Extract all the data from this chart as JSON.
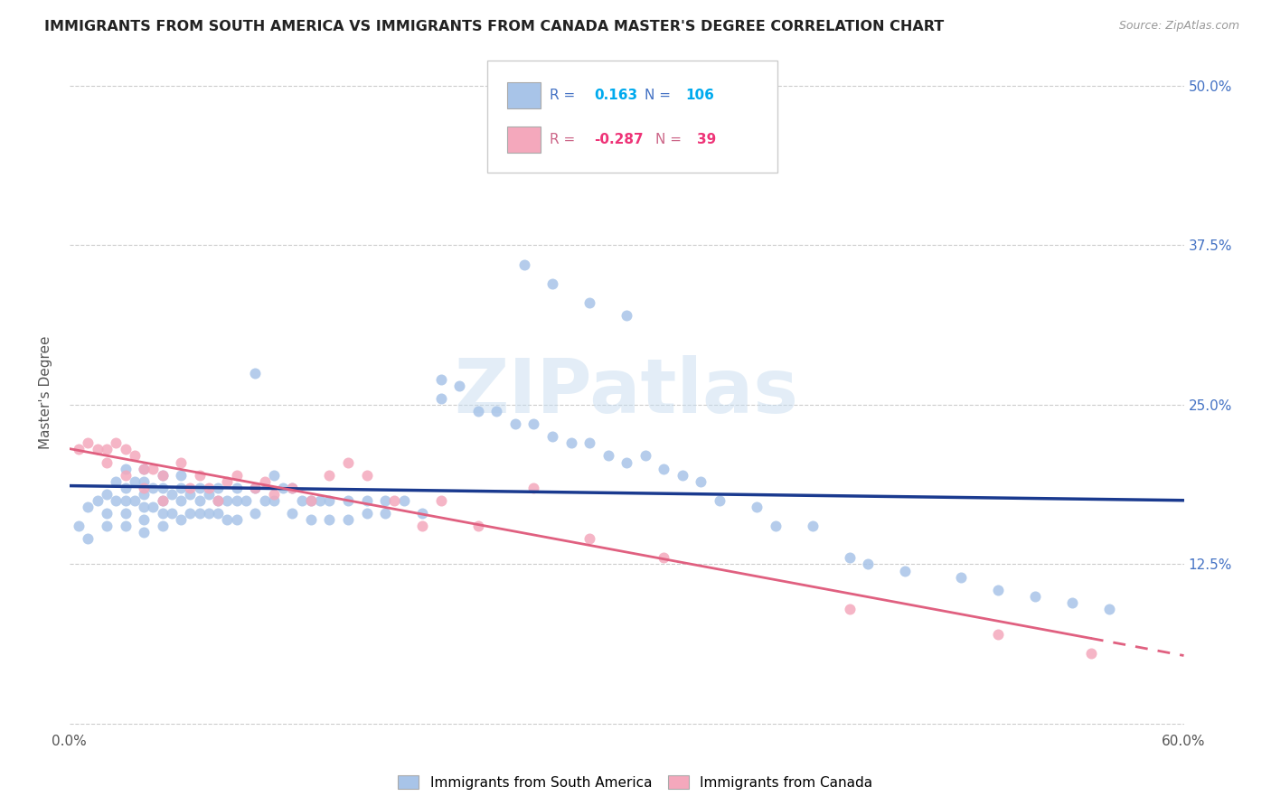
{
  "title": "IMMIGRANTS FROM SOUTH AMERICA VS IMMIGRANTS FROM CANADA MASTER'S DEGREE CORRELATION CHART",
  "source": "Source: ZipAtlas.com",
  "ylabel": "Master's Degree",
  "ytick_labels": [
    "",
    "12.5%",
    "25.0%",
    "37.5%",
    "50.0%"
  ],
  "ytick_values": [
    0.0,
    0.125,
    0.25,
    0.375,
    0.5
  ],
  "xlim": [
    0.0,
    0.6
  ],
  "ylim": [
    -0.005,
    0.525
  ],
  "legend_label1": "Immigrants from South America",
  "legend_label2": "Immigrants from Canada",
  "r1": 0.163,
  "n1": 106,
  "r2": -0.287,
  "n2": 39,
  "color1": "#a8c4e8",
  "color2": "#f4a8bc",
  "trendline1_color": "#1a3a8f",
  "trendline2_color": "#e06080",
  "watermark": "ZIPatlas",
  "sa_x": [
    0.005,
    0.01,
    0.01,
    0.015,
    0.02,
    0.02,
    0.02,
    0.025,
    0.025,
    0.03,
    0.03,
    0.03,
    0.03,
    0.03,
    0.035,
    0.035,
    0.04,
    0.04,
    0.04,
    0.04,
    0.04,
    0.04,
    0.045,
    0.045,
    0.05,
    0.05,
    0.05,
    0.05,
    0.05,
    0.055,
    0.055,
    0.06,
    0.06,
    0.06,
    0.06,
    0.065,
    0.065,
    0.07,
    0.07,
    0.07,
    0.075,
    0.075,
    0.08,
    0.08,
    0.08,
    0.085,
    0.085,
    0.09,
    0.09,
    0.09,
    0.095,
    0.1,
    0.1,
    0.1,
    0.105,
    0.11,
    0.11,
    0.115,
    0.12,
    0.12,
    0.125,
    0.13,
    0.13,
    0.135,
    0.14,
    0.14,
    0.15,
    0.15,
    0.16,
    0.16,
    0.17,
    0.17,
    0.18,
    0.19,
    0.2,
    0.2,
    0.21,
    0.22,
    0.23,
    0.24,
    0.25,
    0.26,
    0.27,
    0.28,
    0.29,
    0.3,
    0.31,
    0.32,
    0.33,
    0.34,
    0.35,
    0.37,
    0.38,
    0.4,
    0.42,
    0.43,
    0.45,
    0.48,
    0.5,
    0.52,
    0.54,
    0.56,
    0.245,
    0.26,
    0.28,
    0.3
  ],
  "sa_y": [
    0.155,
    0.17,
    0.145,
    0.175,
    0.18,
    0.165,
    0.155,
    0.19,
    0.175,
    0.2,
    0.185,
    0.175,
    0.165,
    0.155,
    0.19,
    0.175,
    0.2,
    0.19,
    0.18,
    0.17,
    0.16,
    0.15,
    0.185,
    0.17,
    0.195,
    0.185,
    0.175,
    0.165,
    0.155,
    0.18,
    0.165,
    0.195,
    0.185,
    0.175,
    0.16,
    0.18,
    0.165,
    0.185,
    0.175,
    0.165,
    0.18,
    0.165,
    0.185,
    0.175,
    0.165,
    0.175,
    0.16,
    0.185,
    0.175,
    0.16,
    0.175,
    0.275,
    0.185,
    0.165,
    0.175,
    0.195,
    0.175,
    0.185,
    0.185,
    0.165,
    0.175,
    0.175,
    0.16,
    0.175,
    0.175,
    0.16,
    0.175,
    0.16,
    0.175,
    0.165,
    0.175,
    0.165,
    0.175,
    0.165,
    0.27,
    0.255,
    0.265,
    0.245,
    0.245,
    0.235,
    0.235,
    0.225,
    0.22,
    0.22,
    0.21,
    0.205,
    0.21,
    0.2,
    0.195,
    0.19,
    0.175,
    0.17,
    0.155,
    0.155,
    0.13,
    0.125,
    0.12,
    0.115,
    0.105,
    0.1,
    0.095,
    0.09,
    0.36,
    0.345,
    0.33,
    0.32
  ],
  "ca_x": [
    0.005,
    0.01,
    0.015,
    0.02,
    0.02,
    0.025,
    0.03,
    0.03,
    0.035,
    0.04,
    0.04,
    0.045,
    0.05,
    0.05,
    0.06,
    0.065,
    0.07,
    0.075,
    0.08,
    0.085,
    0.09,
    0.1,
    0.105,
    0.11,
    0.12,
    0.13,
    0.14,
    0.15,
    0.16,
    0.175,
    0.19,
    0.2,
    0.22,
    0.25,
    0.28,
    0.32,
    0.42,
    0.5,
    0.55
  ],
  "ca_y": [
    0.215,
    0.22,
    0.215,
    0.215,
    0.205,
    0.22,
    0.215,
    0.195,
    0.21,
    0.2,
    0.185,
    0.2,
    0.195,
    0.175,
    0.205,
    0.185,
    0.195,
    0.185,
    0.175,
    0.19,
    0.195,
    0.185,
    0.19,
    0.18,
    0.185,
    0.175,
    0.195,
    0.205,
    0.195,
    0.175,
    0.155,
    0.175,
    0.155,
    0.185,
    0.145,
    0.13,
    0.09,
    0.07,
    0.055
  ]
}
